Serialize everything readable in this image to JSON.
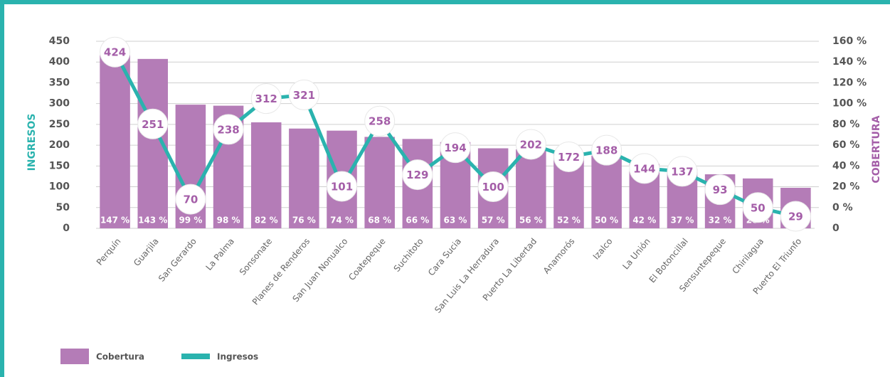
{
  "chart_data": {
    "type": "combo",
    "categories": [
      "Perquín",
      "Guarjila",
      "San Gerardo",
      "La Palma",
      "Sonsonate",
      "Planes de Renderos",
      "San Juan Nonualco",
      "Coatepeque",
      "Suchitoto",
      "Cara Sucia",
      "San Luis La Herradura",
      "Puerto La Libertad",
      "Anamorós",
      "Izalco",
      "La Unión",
      "El Botoncillal",
      "Sensuntepeque",
      "Chirilagua",
      "Puerto El Triunfo"
    ],
    "series": [
      {
        "name": "Cobertura",
        "type": "bar",
        "axis": "y2",
        "color": "#b47cb7",
        "values": [
          147,
          143,
          99,
          98,
          82,
          76,
          74,
          68,
          66,
          63,
          57,
          56,
          52,
          50,
          42,
          37,
          32,
          28,
          19
        ],
        "value_labels": [
          "147 %",
          "143 %",
          "99 %",
          "98 %",
          "82 %",
          "76 %",
          "74 %",
          "68 %",
          "66 %",
          "63 %",
          "57 %",
          "56 %",
          "52 %",
          "50 %",
          "42 %",
          "37 %",
          "32 %",
          "28 %",
          "19 %"
        ]
      },
      {
        "name": "Ingresos",
        "type": "line",
        "color": "#2ab3ae",
        "values": [
          424,
          251,
          70,
          238,
          312,
          321,
          101,
          258,
          129,
          194,
          100,
          202,
          172,
          188,
          144,
          137,
          93,
          50,
          29
        ]
      }
    ],
    "ylabel": "INGRESOS",
    "y2label": "COBERTURA",
    "ylim": [
      0,
      450
    ],
    "yticks": [
      0,
      50,
      100,
      150,
      200,
      250,
      300,
      350,
      400,
      450
    ],
    "y2lim": [
      -20,
      160
    ],
    "y2ticks": [
      {
        "value": 0,
        "label": "0 %"
      },
      {
        "value": 20,
        "label": "20 %"
      },
      {
        "value": 40,
        "label": "40 %"
      },
      {
        "value": 60,
        "label": "60 %"
      },
      {
        "value": 80,
        "label": "80 %"
      },
      {
        "value": 100,
        "label": "100 %"
      },
      {
        "value": 120,
        "label": "120 %"
      },
      {
        "value": 140,
        "label": "140 %"
      },
      {
        "value": 160,
        "label": "160 %"
      }
    ],
    "y2_base_label": "0",
    "grid": true,
    "legend": "bottom-left"
  }
}
